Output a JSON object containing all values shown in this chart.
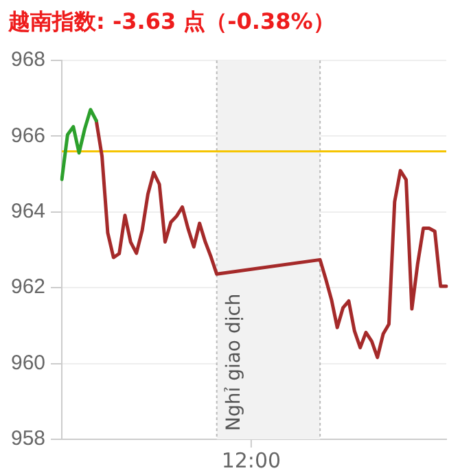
{
  "chart_data": {
    "type": "line",
    "title": "越南指数: -3.63 点（-0.38%）",
    "categories": [
      null,
      null,
      null,
      null,
      null,
      null,
      null,
      null,
      null,
      null,
      null,
      null,
      null,
      null,
      null,
      null,
      null,
      null,
      null,
      null,
      null,
      null,
      null,
      null,
      null,
      null,
      null,
      null,
      null,
      null,
      null,
      null,
      null,
      null,
      null,
      null,
      null,
      null,
      null,
      null,
      null,
      null,
      null,
      null,
      null,
      null,
      null,
      null,
      null,
      null,
      null,
      null,
      null,
      null,
      null,
      null,
      null,
      null,
      null,
      null,
      null,
      null,
      null,
      null,
      null,
      null,
      null,
      null
    ],
    "series": [
      {
        "color": "#2ca02c",
        "values": [
          964.86,
          966.04,
          966.25,
          965.56,
          966.2,
          966.7,
          966.41,
          null,
          null,
          null,
          null,
          null,
          null,
          null,
          null,
          null,
          null,
          null,
          null,
          null,
          null,
          null,
          null,
          null,
          null,
          null,
          null,
          null,
          null,
          null,
          null,
          null,
          null,
          null,
          null,
          null,
          null,
          null,
          null,
          null,
          null,
          null,
          null,
          null,
          null,
          null,
          null,
          null,
          null,
          null,
          null,
          null,
          null,
          null,
          null,
          null,
          null,
          null,
          null,
          null,
          null,
          null,
          null,
          null,
          null,
          null,
          null,
          null
        ]
      },
      {
        "color": "#a52a2a",
        "values": [
          null,
          null,
          null,
          null,
          null,
          null,
          966.41,
          965.47,
          963.45,
          962.8,
          962.9,
          963.91,
          963.2,
          962.91,
          963.51,
          964.47,
          965.04,
          964.73,
          963.21,
          963.73,
          963.89,
          964.13,
          963.56,
          963.08,
          963.7,
          963.21,
          962.81,
          962.36,
          null,
          null,
          null,
          null,
          null,
          null,
          null,
          null,
          null,
          null,
          null,
          null,
          null,
          null,
          null,
          null,
          null,
          962.74,
          962.23,
          961.68,
          960.95,
          961.47,
          961.65,
          960.86,
          960.42,
          960.82,
          960.59,
          960.16,
          960.78,
          961.04,
          964.27,
          965.09,
          964.85,
          961.44,
          962.62,
          963.57,
          963.57,
          963.49,
          962.04,
          962.04
        ]
      }
    ],
    "annotations": [
      "Nghỉ giao dịch",
      "12:00"
    ],
    "ylim": [
      958,
      968
    ],
    "yticks": [
      958,
      960,
      962,
      964,
      966,
      968
    ],
    "ref_lines": [
      {
        "axis": "y",
        "value": 965.6,
        "color": "#f5c400"
      }
    ],
    "grid": "y",
    "legend": false,
    "marker": "none",
    "line_style": "solid"
  }
}
